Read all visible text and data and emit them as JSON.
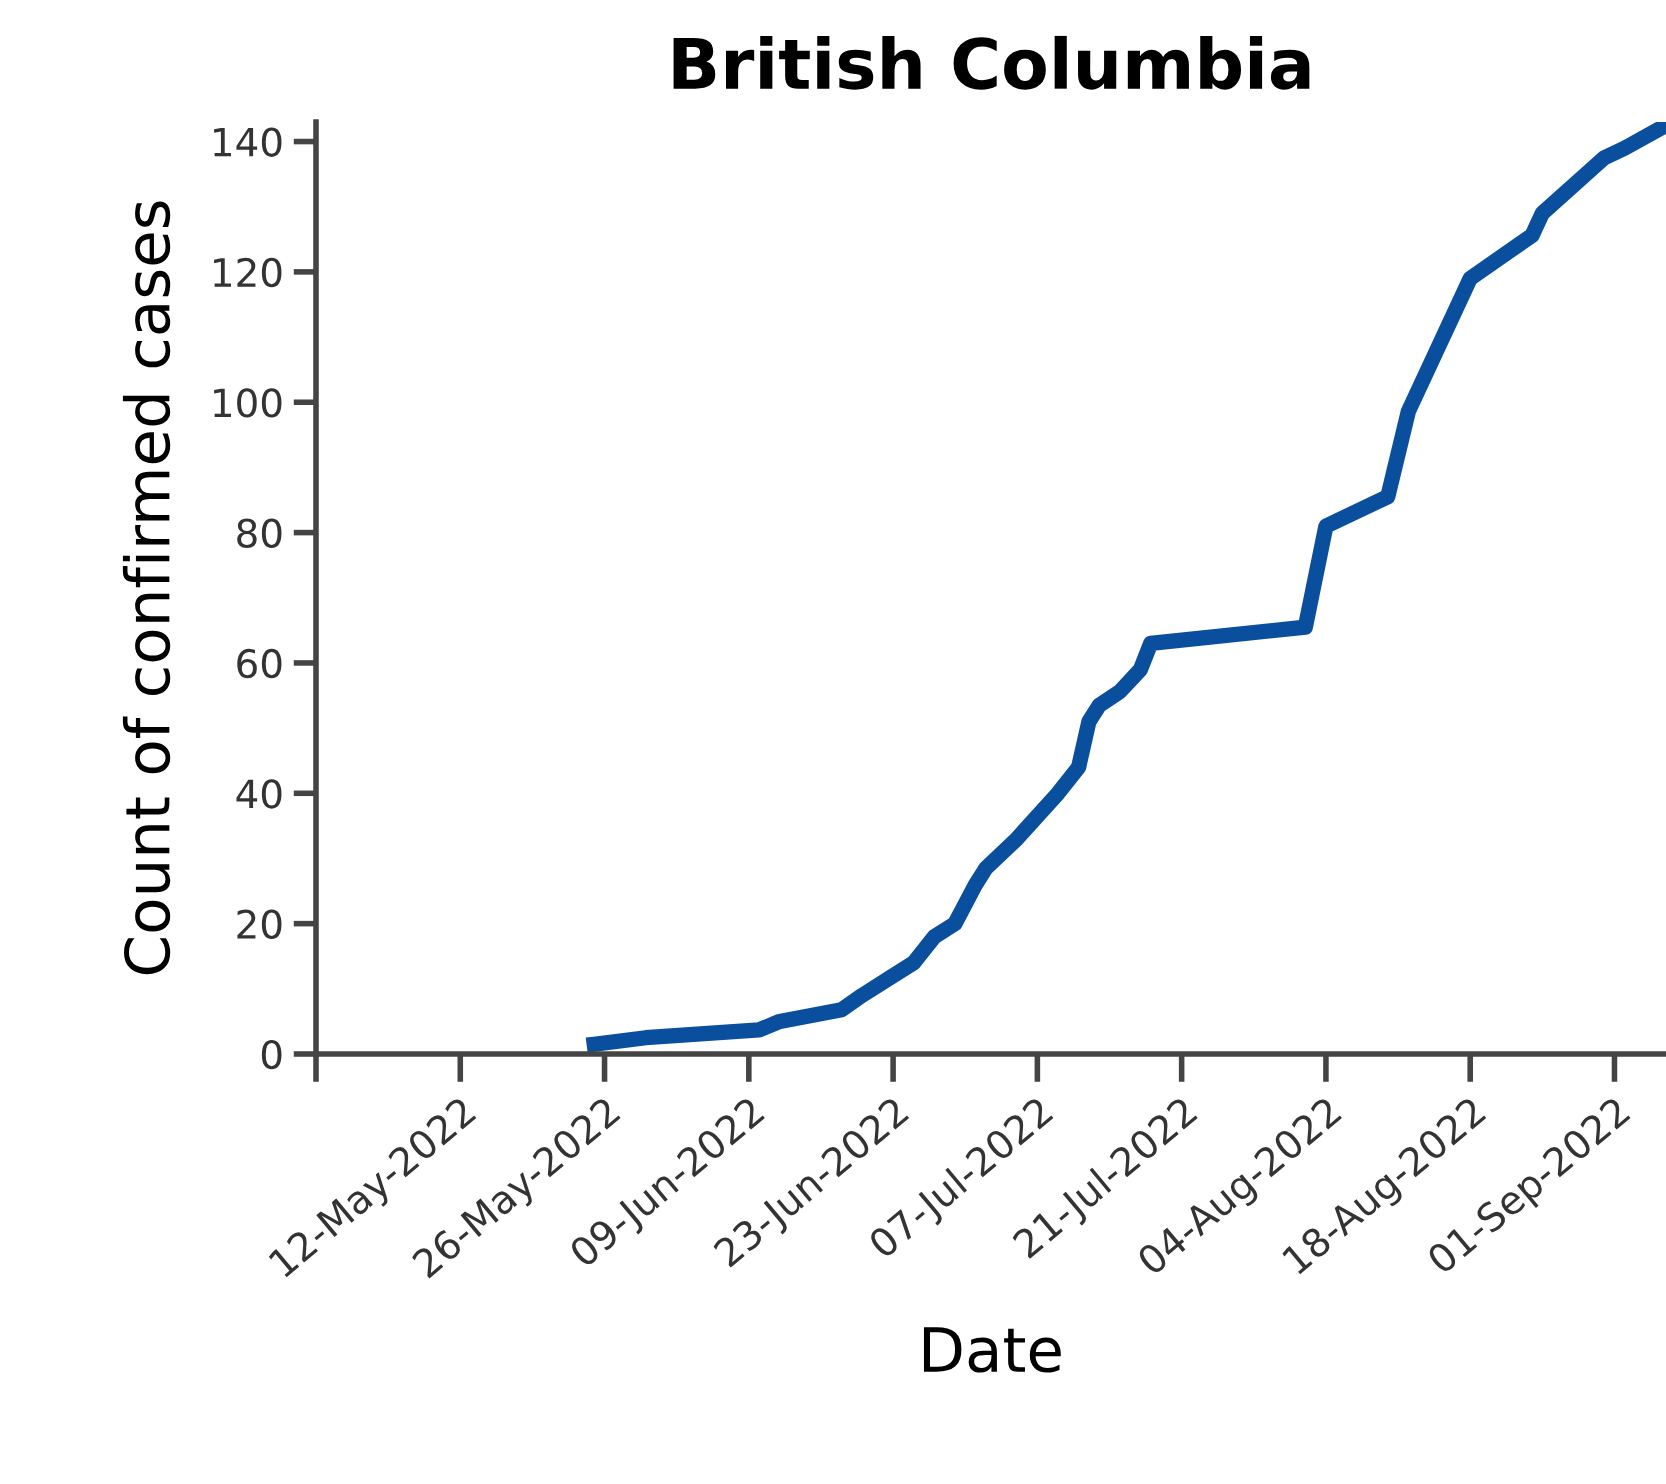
{
  "chart_data": {
    "type": "line",
    "title": "British Columbia",
    "xlabel": "Date",
    "ylabel": "Count of confirmed cases",
    "x": [
      "2022-05-25",
      "2022-05-30",
      "2022-06-10",
      "2022-06-12",
      "2022-06-18",
      "2022-06-20",
      "2022-06-23",
      "2022-06-25",
      "2022-06-27",
      "2022-06-29",
      "2022-07-01",
      "2022-07-02",
      "2022-07-05",
      "2022-07-07",
      "2022-07-09",
      "2022-07-11",
      "2022-07-12",
      "2022-07-13",
      "2022-07-15",
      "2022-07-17",
      "2022-07-18",
      "2022-08-02",
      "2022-08-04",
      "2022-08-10",
      "2022-08-12",
      "2022-08-18",
      "2022-08-24",
      "2022-08-25",
      "2022-08-31",
      "2022-09-02",
      "2022-09-06"
    ],
    "series": [
      {
        "color": "#0a4f9e",
        "values": [
          1.5,
          2.5,
          3.7,
          5,
          6.8,
          9,
          12,
          14,
          18,
          20,
          26,
          28.5,
          33,
          36.5,
          40,
          44,
          51,
          53.5,
          55.6,
          59,
          63,
          65.5,
          81,
          85.5,
          98.6,
          119,
          125.6,
          129,
          137.5,
          139,
          142.5
        ]
      }
    ],
    "xlim": [
      "2022-04-28",
      "2022-09-06"
    ],
    "xticks": [
      {
        "value": "2022-04-28",
        "label": null
      },
      {
        "value": "2022-05-12",
        "label": "12-May-2022"
      },
      {
        "value": "2022-05-26",
        "label": "26-May-2022"
      },
      {
        "value": "2022-06-09",
        "label": "09-Jun-2022"
      },
      {
        "value": "2022-06-23",
        "label": "23-Jun-2022"
      },
      {
        "value": "2022-07-07",
        "label": "07-Jul-2022"
      },
      {
        "value": "2022-07-21",
        "label": "21-Jul-2022"
      },
      {
        "value": "2022-08-04",
        "label": "04-Aug-2022"
      },
      {
        "value": "2022-08-18",
        "label": "18-Aug-2022"
      },
      {
        "value": "2022-09-01",
        "label": "01-Sep-2022"
      }
    ],
    "ylim": [
      0,
      143
    ],
    "yticks": [
      0,
      20,
      40,
      60,
      80,
      100,
      120,
      140
    ],
    "grid": false,
    "legend": false,
    "marker": "none",
    "line_style": "solid"
  }
}
